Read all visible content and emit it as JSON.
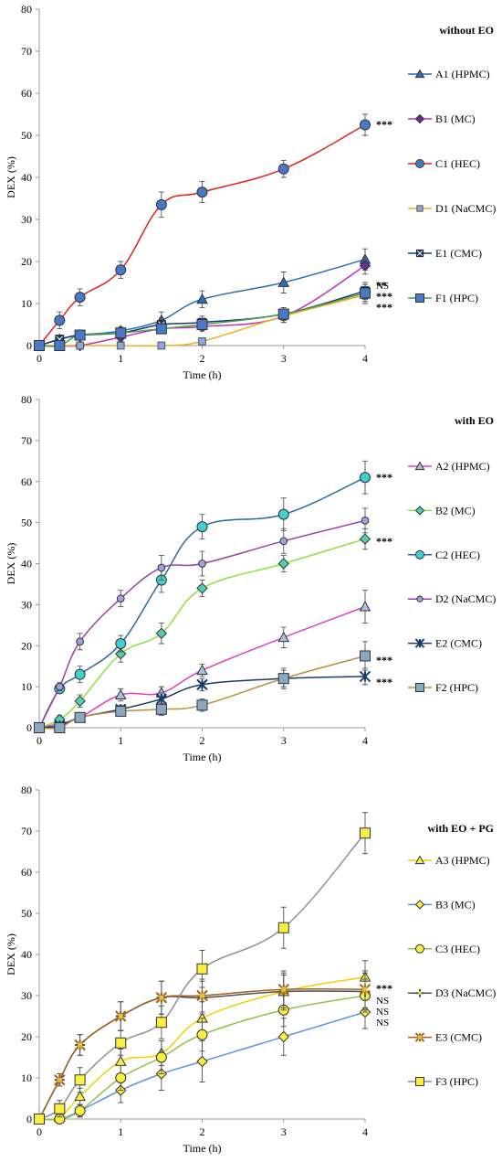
{
  "chart_data": [
    {
      "type": "line",
      "title": "without EO",
      "xlabel": "Time (h)",
      "ylabel": "DEX (%)",
      "xlim": [
        0,
        4
      ],
      "ylim": [
        0,
        80
      ],
      "xticks": [
        "0",
        "1",
        "2",
        "3",
        "4"
      ],
      "yticks": [
        "0",
        "10",
        "20",
        "30",
        "40",
        "50",
        "60",
        "70",
        "80"
      ],
      "legend_position": "right",
      "series": [
        {
          "name": "A1 (HPMC)",
          "marker": "triangle",
          "color": "#2e6db4",
          "fill": "#2e6db4",
          "x": [
            0,
            0.25,
            0.5,
            1,
            1.5,
            2,
            3,
            4
          ],
          "y": [
            0,
            1.5,
            2.5,
            3.5,
            6,
            11,
            15,
            20.5
          ],
          "err": [
            0,
            1,
            1,
            1,
            2,
            2,
            2.5,
            2.5
          ],
          "significance": "NS"
        },
        {
          "name": "B1 (MC)",
          "marker": "diamond",
          "color": "#c030c0",
          "fill": "#6a2a9a",
          "x": [
            0,
            0.25,
            0.5,
            1,
            1.5,
            2,
            3,
            4
          ],
          "y": [
            0,
            0,
            0,
            2,
            4,
            4.5,
            7,
            19
          ],
          "err": [
            0,
            0,
            0,
            1,
            1,
            1,
            1.5,
            2
          ],
          "significance": "**"
        },
        {
          "name": "C1 (HEC)",
          "marker": "circle",
          "color": "#e02020",
          "fill": "#4a78c8",
          "x": [
            0,
            0.25,
            0.5,
            1,
            1.5,
            2,
            3,
            4
          ],
          "y": [
            0,
            6,
            11.5,
            18,
            33.5,
            36.5,
            42,
            52.5
          ],
          "err": [
            0,
            2,
            2,
            2,
            3,
            2.5,
            2,
            2.5
          ],
          "significance": "***"
        },
        {
          "name": "D1 (NaCMC)",
          "marker": "square-small",
          "color": "#f0b020",
          "fill": "#8aa8d8",
          "x": [
            0,
            0.25,
            0.5,
            1,
            1.5,
            2,
            3,
            4
          ],
          "y": [
            0,
            0,
            0,
            0,
            0,
            1,
            7,
            12
          ],
          "err": [
            0,
            0,
            0,
            0,
            0,
            0.5,
            1.5,
            2
          ],
          "significance": ""
        },
        {
          "name": "E1 (CMC)",
          "marker": "x-square",
          "color": "#1a3a6a",
          "fill": "#1a3a6a",
          "x": [
            0,
            0.25,
            0.5,
            1,
            1.5,
            2,
            3,
            4
          ],
          "y": [
            0,
            1.5,
            2.5,
            3,
            5,
            5.5,
            7.5,
            13
          ],
          "err": [
            0,
            1,
            1,
            1,
            1.5,
            1.5,
            1.5,
            2
          ],
          "significance": "***"
        },
        {
          "name": "F1 (HPC)",
          "marker": "square",
          "color": "#4aa24a",
          "fill": "#4a78c8",
          "x": [
            0,
            0.25,
            0.5,
            1,
            1.5,
            2,
            3,
            4
          ],
          "y": [
            0,
            0,
            2.5,
            3,
            4,
            5,
            7.5,
            12.5
          ],
          "err": [
            0,
            0,
            1,
            1,
            1,
            1.5,
            1.5,
            2
          ],
          "significance": "***"
        }
      ]
    },
    {
      "type": "line",
      "title": "with EO",
      "xlabel": "Time (h)",
      "ylabel": "DEX (%)",
      "xlim": [
        0,
        4
      ],
      "ylim": [
        0,
        80
      ],
      "xticks": [
        "0",
        "1",
        "2",
        "3",
        "4"
      ],
      "yticks": [
        "0",
        "10",
        "20",
        "30",
        "40",
        "50",
        "60",
        "70",
        "80"
      ],
      "legend_position": "right",
      "series": [
        {
          "name": "A2 (HPMC)",
          "marker": "triangle",
          "color": "#e040c0",
          "fill": "#a8c0e0",
          "x": [
            0,
            0.25,
            0.5,
            1,
            1.5,
            2,
            3,
            4
          ],
          "y": [
            0,
            1,
            2.5,
            8,
            8.5,
            14,
            22,
            29.5
          ],
          "err": [
            0,
            0.5,
            1,
            1.5,
            1.5,
            1.5,
            2.5,
            4
          ],
          "significance": ""
        },
        {
          "name": "B2 (MC)",
          "marker": "diamond",
          "color": "#90e040",
          "fill": "#50d0b0",
          "x": [
            0,
            0.25,
            0.5,
            1,
            1.5,
            2,
            3,
            4
          ],
          "y": [
            0,
            2,
            6.5,
            18,
            23,
            34,
            40,
            46
          ],
          "err": [
            0,
            1,
            1.5,
            2,
            2.5,
            2,
            2,
            2.5
          ],
          "significance": "***"
        },
        {
          "name": "C2 (HEC)",
          "marker": "circle",
          "color": "#2a6aa0",
          "fill": "#40d0d0",
          "x": [
            0,
            0.25,
            0.5,
            1,
            1.5,
            2,
            3,
            4
          ],
          "y": [
            0,
            9.5,
            13,
            20.5,
            36,
            49,
            52,
            61
          ],
          "err": [
            0,
            1,
            2,
            2,
            3,
            3,
            4,
            4
          ],
          "significance": "***"
        },
        {
          "name": "D2 (NaCMC)",
          "marker": "circle-small",
          "color": "#a040a0",
          "fill": "#a0a0e0",
          "x": [
            0,
            0.25,
            0.5,
            1,
            1.5,
            2,
            3,
            4
          ],
          "y": [
            0,
            10,
            21,
            31.5,
            39,
            40,
            45.5,
            50.5
          ],
          "err": [
            0,
            1,
            2,
            2,
            3,
            3,
            3,
            3
          ],
          "significance": "***"
        },
        {
          "name": "E2 (CMC)",
          "marker": "star",
          "color": "#1a3a6a",
          "fill": "#1a3a6a",
          "x": [
            0,
            0.25,
            0.5,
            1,
            1.5,
            2,
            3,
            4
          ],
          "y": [
            0,
            0.5,
            2.5,
            4.5,
            7,
            10.5,
            12,
            12.5
          ],
          "err": [
            0,
            0.5,
            1,
            1,
            1.5,
            1.5,
            2,
            2
          ],
          "significance": "***"
        },
        {
          "name": "F2 (HPC)",
          "marker": "square",
          "color": "#b89040",
          "fill": "#8aa8c0",
          "x": [
            0,
            0.25,
            0.5,
            1,
            1.5,
            2,
            3,
            4
          ],
          "y": [
            0,
            0,
            2.5,
            4,
            4.5,
            5.5,
            12,
            17.5
          ],
          "err": [
            0,
            0,
            1,
            1,
            1.5,
            1.5,
            2.5,
            3.5
          ],
          "significance": "***"
        }
      ]
    },
    {
      "type": "line",
      "title": "with EO + PG",
      "xlabel": "Time (h)",
      "ylabel": "DEX (%)",
      "xlim": [
        0,
        4
      ],
      "ylim": [
        0,
        80
      ],
      "xticks": [
        "0",
        "1",
        "2",
        "3",
        "4"
      ],
      "yticks": [
        "0",
        "10",
        "20",
        "30",
        "40",
        "50",
        "60",
        "70",
        "80"
      ],
      "legend_position": "right",
      "series": [
        {
          "name": "A3 (HPMC)",
          "marker": "triangle",
          "color": "#f0d000",
          "fill": "#f8f040",
          "x": [
            0,
            0.25,
            0.5,
            1,
            1.5,
            2,
            3,
            4
          ],
          "y": [
            0,
            0.5,
            5.5,
            14,
            16,
            24.5,
            31,
            34.5
          ],
          "err": [
            0,
            0.5,
            2,
            3,
            3,
            4,
            4,
            4
          ],
          "significance": "NS"
        },
        {
          "name": "B3 (MC)",
          "marker": "diamond",
          "color": "#6090e0",
          "fill": "#f8f040",
          "x": [
            0,
            0.25,
            0.5,
            1,
            1.5,
            2,
            3,
            4
          ],
          "y": [
            0,
            0,
            2,
            7,
            11,
            14,
            20,
            26
          ],
          "err": [
            0,
            0.5,
            1.5,
            3,
            4,
            5,
            4.5,
            4
          ],
          "significance": "NS"
        },
        {
          "name": "C3 (HEC)",
          "marker": "circle",
          "color": "#90c050",
          "fill": "#f8f040",
          "x": [
            0,
            0.25,
            0.5,
            1,
            1.5,
            2,
            3,
            4
          ],
          "y": [
            0,
            0,
            2,
            10,
            15,
            20.5,
            26.5,
            30
          ],
          "err": [
            0,
            0.5,
            1.5,
            3,
            4,
            4,
            4,
            4
          ],
          "significance": "NS"
        },
        {
          "name": "D3 (NaCMC)",
          "marker": "plus",
          "color": "#505050",
          "fill": "#f8f040",
          "x": [
            0,
            0.25,
            0.5,
            1,
            1.5,
            2,
            3,
            4
          ],
          "y": [
            0,
            9.5,
            18,
            25,
            29.5,
            29.5,
            31,
            31
          ],
          "err": [
            0,
            1.5,
            2.5,
            3.5,
            4,
            4,
            4.5,
            4.5
          ],
          "significance": "NS"
        },
        {
          "name": "E3 (CMC)",
          "marker": "star",
          "color": "#a06020",
          "fill": "#f8f040",
          "x": [
            0,
            0.25,
            0.5,
            1,
            1.5,
            2,
            3,
            4
          ],
          "y": [
            0,
            9.5,
            18,
            25,
            29.5,
            30,
            31.5,
            31.5
          ],
          "err": [
            0,
            1.5,
            2.5,
            3.5,
            4,
            4,
            4.5,
            4.5
          ],
          "significance": ""
        },
        {
          "name": "F3 (HPC)",
          "marker": "square",
          "color": "#909090",
          "fill": "#f8f040",
          "x": [
            0,
            0.25,
            0.5,
            1,
            1.5,
            2,
            3,
            4
          ],
          "y": [
            0,
            2.5,
            9.5,
            18.5,
            23.5,
            36.5,
            46.5,
            69.5
          ],
          "err": [
            0,
            2,
            3,
            3,
            4,
            4.5,
            5,
            5
          ],
          "significance": "***"
        }
      ]
    }
  ]
}
